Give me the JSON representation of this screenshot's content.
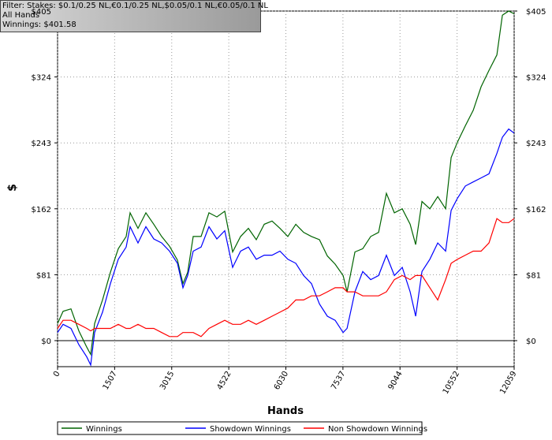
{
  "chart_data": {
    "type": "line",
    "annotations": [
      "Filter: Stakes: $0.1/0.25 NL,€0.1/0.25 NL,$0.05/0.1 NL,€0.05/0.1 NL",
      "All Hands",
      "Winnings: $401.58"
    ],
    "x_label": "Hands",
    "y_label": "$",
    "xlim": [
      0,
      12059
    ],
    "xticks": [
      0,
      1507,
      3015,
      4522,
      6030,
      7537,
      9044,
      10552,
      12059
    ],
    "ylim": [
      -32,
      405
    ],
    "yticks": [
      {
        "value": 0,
        "label": "$0"
      },
      {
        "value": 81,
        "label": "$81"
      },
      {
        "value": 162,
        "label": "$162"
      },
      {
        "value": 243,
        "label": "$243"
      },
      {
        "value": 324,
        "label": "$324"
      },
      {
        "value": 405,
        "label": "$405"
      }
    ],
    "grid": true,
    "x": [
      0,
      146,
      354,
      562,
      771,
      875,
      979,
      1187,
      1396,
      1604,
      1812,
      1916,
      2125,
      2333,
      2541,
      2750,
      2958,
      3166,
      3312,
      3437,
      3583,
      3791,
      3999,
      4208,
      4416,
      4624,
      4833,
      5041,
      5249,
      5458,
      5666,
      5874,
      6082,
      6291,
      6499,
      6707,
      6916,
      7124,
      7332,
      7541,
      7645,
      7853,
      8061,
      8270,
      8478,
      8686,
      8895,
      9103,
      9311,
      9457,
      9624,
      9832,
      10040,
      10249,
      10395,
      10561,
      10770,
      10978,
      11186,
      11394,
      11603,
      11748,
      11915,
      12059
    ],
    "series": [
      {
        "name": "Winnings",
        "color": "#006400",
        "values": [
          21,
          36,
          39,
          12,
          -8,
          -17,
          21,
          50,
          84,
          113,
          128,
          157,
          138,
          157,
          143,
          128,
          116,
          99,
          70,
          84,
          128,
          128,
          157,
          152,
          159,
          109,
          128,
          138,
          124,
          143,
          147,
          138,
          128,
          143,
          133,
          128,
          124,
          104,
          94,
          80,
          60,
          109,
          113,
          128,
          133,
          181,
          157,
          162,
          143,
          118,
          171,
          162,
          177,
          162,
          225,
          244,
          264,
          283,
          312,
          332,
          351,
          400,
          405,
          401.58
        ]
      },
      {
        "name": "Showdown Winnings",
        "color": "#0000ff",
        "values": [
          10,
          20,
          15,
          -5,
          -20,
          -30,
          10,
          35,
          70,
          100,
          115,
          140,
          120,
          140,
          125,
          120,
          110,
          95,
          65,
          80,
          110,
          115,
          140,
          125,
          135,
          90,
          110,
          115,
          100,
          105,
          105,
          110,
          100,
          95,
          80,
          70,
          45,
          30,
          25,
          10,
          15,
          60,
          85,
          75,
          80,
          105,
          80,
          90,
          60,
          30,
          85,
          100,
          120,
          110,
          160,
          175,
          190,
          195,
          200,
          205,
          230,
          250,
          260,
          255
        ]
      },
      {
        "name": "Non Showdown Winnings",
        "color": "#ff0000",
        "values": [
          15,
          25,
          25,
          20,
          15,
          12,
          15,
          15,
          15,
          20,
          15,
          15,
          20,
          15,
          15,
          10,
          5,
          5,
          10,
          10,
          10,
          5,
          15,
          20,
          25,
          20,
          20,
          25,
          20,
          25,
          30,
          35,
          40,
          50,
          50,
          55,
          55,
          60,
          65,
          65,
          60,
          60,
          55,
          55,
          55,
          60,
          75,
          80,
          75,
          80,
          80,
          65,
          50,
          75,
          95,
          100,
          105,
          110,
          110,
          120,
          150,
          145,
          145,
          150
        ]
      }
    ]
  }
}
